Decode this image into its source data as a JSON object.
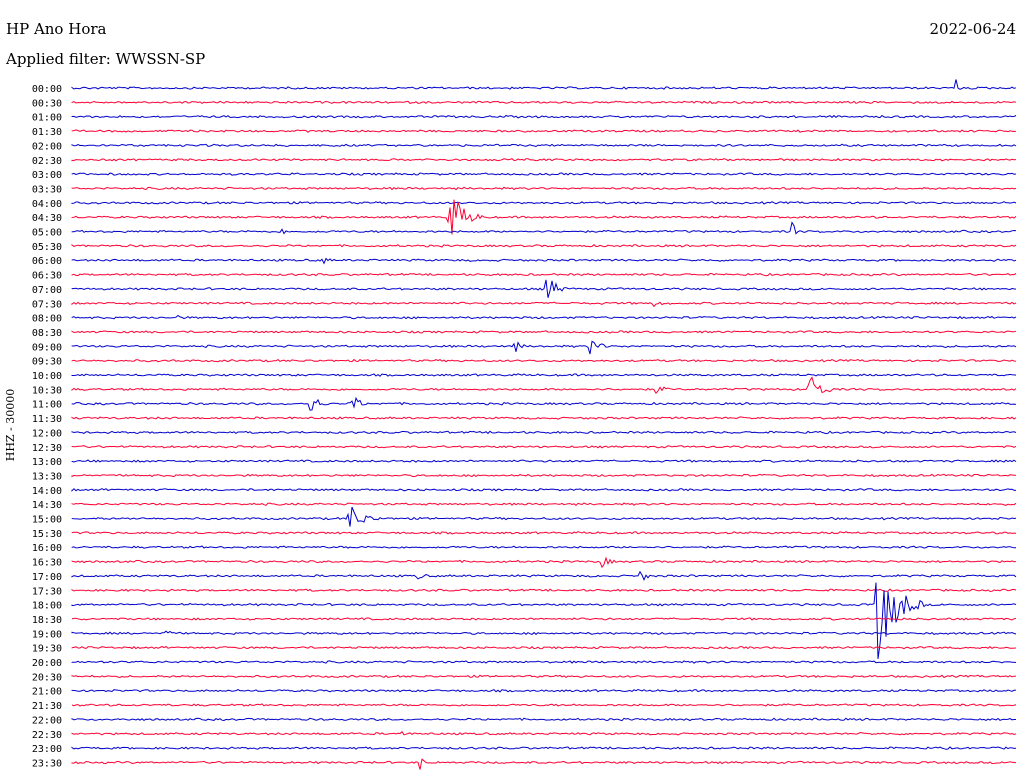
{
  "header": {
    "station": "HP Ano Hora",
    "date": "2022-06-24",
    "filter": "Applied filter: WWSSN-SP"
  },
  "chart_data": {
    "type": "line",
    "title": "HP Ano Hora",
    "ylabel": "HHZ - 30000",
    "colors": [
      "#0000cc",
      "#ff0033"
    ],
    "rows": [
      "00:00",
      "00:30",
      "01:00",
      "01:30",
      "02:00",
      "02:30",
      "03:00",
      "03:30",
      "04:00",
      "04:30",
      "05:00",
      "05:30",
      "06:00",
      "06:30",
      "07:00",
      "07:30",
      "08:00",
      "08:30",
      "09:00",
      "09:30",
      "10:00",
      "10:30",
      "11:00",
      "11:30",
      "12:00",
      "12:30",
      "13:00",
      "13:30",
      "14:00",
      "14:30",
      "15:00",
      "15:30",
      "16:00",
      "16:30",
      "17:00",
      "17:30",
      "18:00",
      "18:30",
      "19:00",
      "19:30",
      "20:00",
      "20:30",
      "21:00",
      "21:30",
      "22:00",
      "22:30",
      "23:00",
      "23:30"
    ],
    "events": [
      {
        "row": "00:00",
        "minute": 28.1,
        "amplitude": 10,
        "duration": 0.2
      },
      {
        "row": "04:30",
        "minute": 12.0,
        "amplitude": 30,
        "duration": 1.2
      },
      {
        "row": "05:00",
        "minute": 6.7,
        "amplitude": 4,
        "duration": 0.3
      },
      {
        "row": "05:00",
        "minute": 22.9,
        "amplitude": 10,
        "duration": 0.3
      },
      {
        "row": "06:00",
        "minute": 8.0,
        "amplitude": 4,
        "duration": 0.6
      },
      {
        "row": "07:00",
        "minute": 15.1,
        "amplitude": 15,
        "duration": 0.8
      },
      {
        "row": "07:30",
        "minute": 18.5,
        "amplitude": 4,
        "duration": 0.8
      },
      {
        "row": "08:00",
        "minute": 3.4,
        "amplitude": 4,
        "duration": 0.3
      },
      {
        "row": "09:00",
        "minute": 14.1,
        "amplitude": 6,
        "duration": 0.6
      },
      {
        "row": "09:00",
        "minute": 16.5,
        "amplitude": 14,
        "duration": 0.6
      },
      {
        "row": "10:30",
        "minute": 23.4,
        "amplitude": 20,
        "duration": 1.0
      },
      {
        "row": "10:30",
        "minute": 18.6,
        "amplitude": 5,
        "duration": 0.8
      },
      {
        "row": "11:00",
        "minute": 7.6,
        "amplitude": 14,
        "duration": 0.6
      },
      {
        "row": "11:00",
        "minute": 8.9,
        "amplitude": 12,
        "duration": 0.6
      },
      {
        "row": "15:00",
        "minute": 8.8,
        "amplitude": 16,
        "duration": 1.2
      },
      {
        "row": "16:30",
        "minute": 16.9,
        "amplitude": 6,
        "duration": 0.6
      },
      {
        "row": "17:00",
        "minute": 11.0,
        "amplitude": 5,
        "duration": 0.6
      },
      {
        "row": "17:00",
        "minute": 18.1,
        "amplitude": 6,
        "duration": 0.6
      },
      {
        "row": "18:00",
        "minute": 25.6,
        "amplitude": 60,
        "duration": 1.5
      },
      {
        "row": "19:00",
        "minute": 3.0,
        "amplitude": 5,
        "duration": 0.4
      },
      {
        "row": "22:30",
        "minute": 10.5,
        "amplitude": 5,
        "duration": 0.2
      },
      {
        "row": "23:30",
        "minute": 11.1,
        "amplitude": 8,
        "duration": 0.2
      }
    ]
  }
}
